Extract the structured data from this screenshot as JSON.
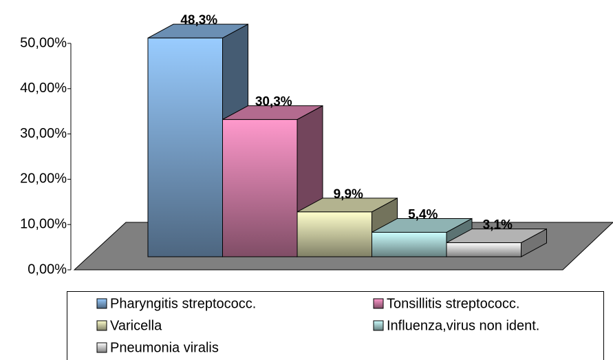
{
  "chart_data": {
    "type": "bar",
    "categories": [
      null
    ],
    "series": [
      {
        "name": "Pharyngitis streptococc.",
        "color": "#99ccff",
        "values": [
          48.3
        ],
        "value_labels": [
          "48,3%"
        ]
      },
      {
        "name": "Tonsillitis streptococc.",
        "color": "#ff99cc",
        "values": [
          30.3
        ],
        "value_labels": [
          "30,3%"
        ]
      },
      {
        "name": "Varicella",
        "color": "#ffffcc",
        "values": [
          9.9
        ],
        "value_labels": [
          "9,9%"
        ]
      },
      {
        "name": "Influenza,virus non ident.",
        "color": "#ccffff",
        "values": [
          5.4
        ],
        "value_labels": [
          "5,4%"
        ]
      },
      {
        "name": "Pneumonia viralis",
        "color": "#ffffff",
        "values": [
          3.1
        ],
        "value_labels": [
          "3,1%"
        ]
      }
    ],
    "ylim": [
      0,
      50
    ],
    "yticks": [
      {
        "value": 0,
        "label": "0,00%"
      },
      {
        "value": 10,
        "label": "10,00%"
      },
      {
        "value": 20,
        "label": "20,00%"
      },
      {
        "value": 30,
        "label": "30,00%"
      },
      {
        "value": 40,
        "label": "40,00%"
      },
      {
        "value": 50,
        "label": "50,00%"
      }
    ],
    "legend": "bottom"
  }
}
